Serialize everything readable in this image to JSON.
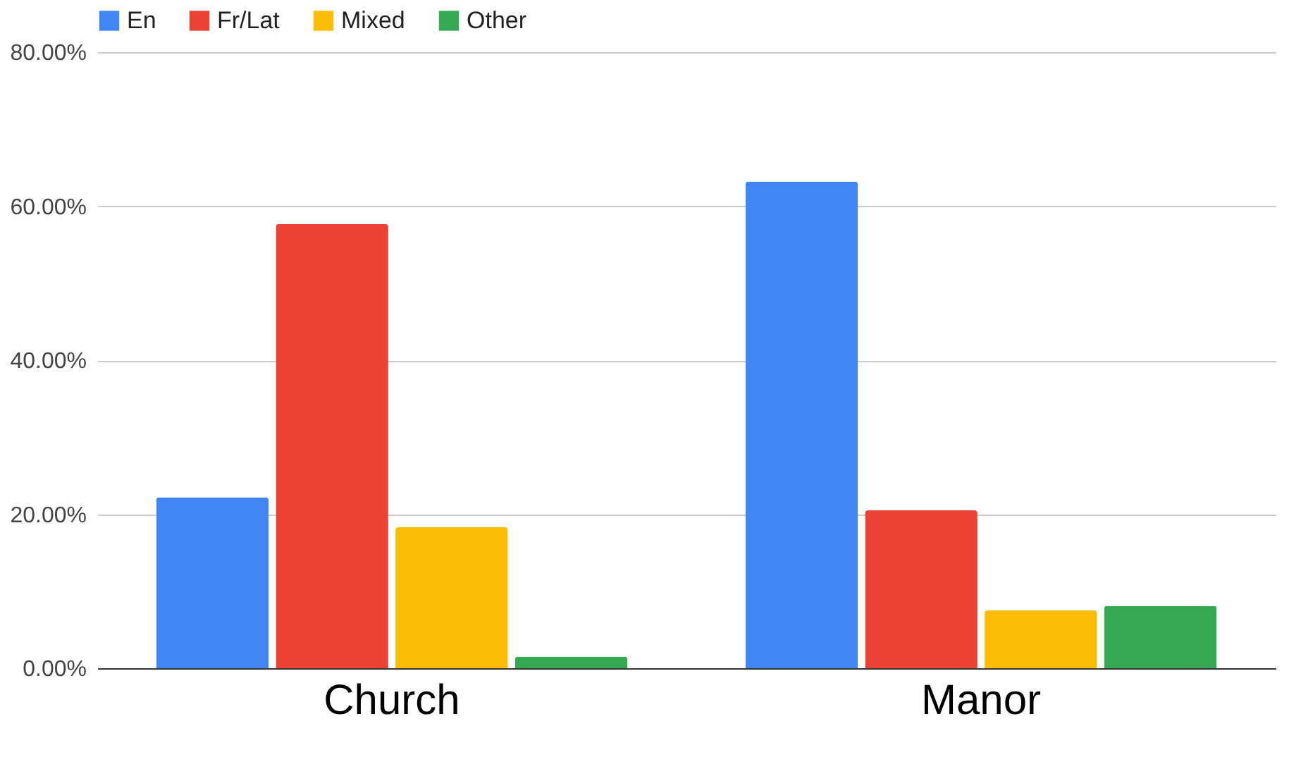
{
  "chart_data": {
    "type": "bar",
    "categories": [
      "Church",
      "Manor"
    ],
    "series": [
      {
        "name": "En",
        "color": "#4285f4",
        "values": [
          22.2,
          63.2
        ]
      },
      {
        "name": "Fr/Lat",
        "color": "#ea4335",
        "values": [
          57.7,
          20.5
        ]
      },
      {
        "name": "Mixed",
        "color": "#fbbc04",
        "values": [
          18.3,
          7.5
        ]
      },
      {
        "name": "Other",
        "color": "#34a853",
        "values": [
          1.5,
          8.1
        ]
      }
    ],
    "ylim": [
      0,
      80
    ],
    "yticks": [
      {
        "value": 0,
        "label": "0.00%"
      },
      {
        "value": 20,
        "label": "20.00%"
      },
      {
        "value": 40,
        "label": "40.00%"
      },
      {
        "value": 60,
        "label": "60.00%"
      },
      {
        "value": 80,
        "label": "80.00%"
      }
    ],
    "grid": "y",
    "legend": "top"
  }
}
